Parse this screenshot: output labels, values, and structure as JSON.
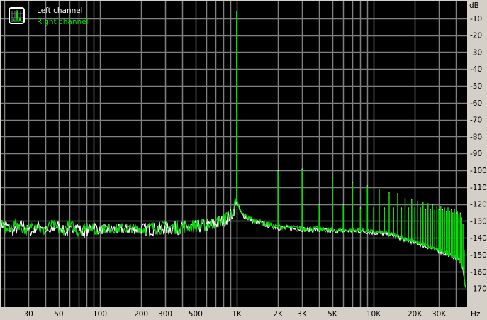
{
  "chart_data": {
    "type": "line",
    "title": "",
    "xlabel": "Hz",
    "ylabel": "dB",
    "x_scale": "log",
    "xlim": [
      20,
      48000
    ],
    "ylim": [
      -181,
      0
    ],
    "grid": true,
    "legend_position": "top-left",
    "x_ticks": [
      {
        "value": 30,
        "label": "30"
      },
      {
        "value": 50,
        "label": "50"
      },
      {
        "value": 100,
        "label": "100"
      },
      {
        "value": 200,
        "label": "200"
      },
      {
        "value": 300,
        "label": "300"
      },
      {
        "value": 500,
        "label": "500"
      },
      {
        "value": 1000,
        "label": "1K"
      },
      {
        "value": 2000,
        "label": "2K"
      },
      {
        "value": 3000,
        "label": "3K"
      },
      {
        "value": 5000,
        "label": "5K"
      },
      {
        "value": 10000,
        "label": "10K"
      },
      {
        "value": 20000,
        "label": "20K"
      },
      {
        "value": 30000,
        "label": "30K"
      }
    ],
    "y_ticks": [
      -10,
      -20,
      -30,
      -40,
      -50,
      -60,
      -70,
      -80,
      -90,
      -100,
      -110,
      -120,
      -130,
      -140,
      -150,
      -160,
      -170
    ],
    "y_tick_labels": [
      "-10",
      "-20",
      "-30",
      "-40",
      "-50",
      "-60",
      "-70",
      "-80",
      "-90",
      "-100",
      "-110",
      "-120",
      "-130",
      "-140",
      "-150",
      "-160",
      "-170"
    ],
    "series": [
      {
        "name": "Left channel",
        "color": "#ffffff"
      },
      {
        "name": "Right channel",
        "color": "#00e000"
      }
    ],
    "noise_floor": [
      [
        20,
        -134
      ],
      [
        60,
        -135
      ],
      [
        200,
        -135
      ],
      [
        400,
        -134
      ],
      [
        600,
        -133
      ],
      [
        800,
        -130
      ],
      [
        920,
        -126
      ],
      [
        1000,
        -119
      ],
      [
        1080,
        -126
      ],
      [
        1300,
        -130
      ],
      [
        1600,
        -132
      ],
      [
        2000,
        -134
      ],
      [
        5000,
        -136
      ],
      [
        8000,
        -136
      ],
      [
        10000,
        -137
      ],
      [
        13000,
        -138
      ],
      [
        17000,
        -141
      ],
      [
        22000,
        -144
      ],
      [
        30000,
        -148
      ],
      [
        38000,
        -151
      ],
      [
        43000,
        -154
      ],
      [
        45000,
        -158
      ],
      [
        46500,
        -168
      ],
      [
        48000,
        -172
      ]
    ],
    "fundamental": {
      "freq": 1000,
      "db": -5.5
    },
    "harmonics": [
      [
        2000,
        -100
      ],
      [
        3000,
        -99
      ],
      [
        4000,
        -120
      ],
      [
        5000,
        -104
      ],
      [
        6000,
        -120
      ],
      [
        7000,
        -107
      ],
      [
        8000,
        -122
      ],
      [
        9000,
        -109
      ],
      [
        10000,
        -122
      ],
      [
        11000,
        -111
      ],
      [
        12000,
        -122
      ],
      [
        13000,
        -113
      ],
      [
        14000,
        -122
      ],
      [
        15000,
        -113.5
      ],
      [
        16000,
        -122
      ],
      [
        17000,
        -116
      ],
      [
        18000,
        -122
      ],
      [
        19000,
        -117
      ],
      [
        20000,
        -122
      ],
      [
        21000,
        -118
      ],
      [
        22000,
        -122
      ],
      [
        23000,
        -118.5
      ],
      [
        24000,
        -123
      ],
      [
        25000,
        -119.5
      ],
      [
        26000,
        -123
      ],
      [
        27000,
        -120
      ],
      [
        28000,
        -123
      ],
      [
        29000,
        -121
      ],
      [
        30000,
        -123
      ],
      [
        31000,
        -121
      ],
      [
        32000,
        -123
      ],
      [
        33000,
        -122
      ],
      [
        34000,
        -124
      ],
      [
        35000,
        -122
      ],
      [
        36000,
        -124
      ],
      [
        37000,
        -123
      ],
      [
        38000,
        -125
      ],
      [
        39000,
        -123
      ],
      [
        40000,
        -125
      ],
      [
        41000,
        -124
      ],
      [
        42000,
        -126
      ],
      [
        43000,
        -125
      ],
      [
        44000,
        -128
      ],
      [
        45000,
        -132
      ],
      [
        46000,
        -147
      ]
    ]
  }
}
